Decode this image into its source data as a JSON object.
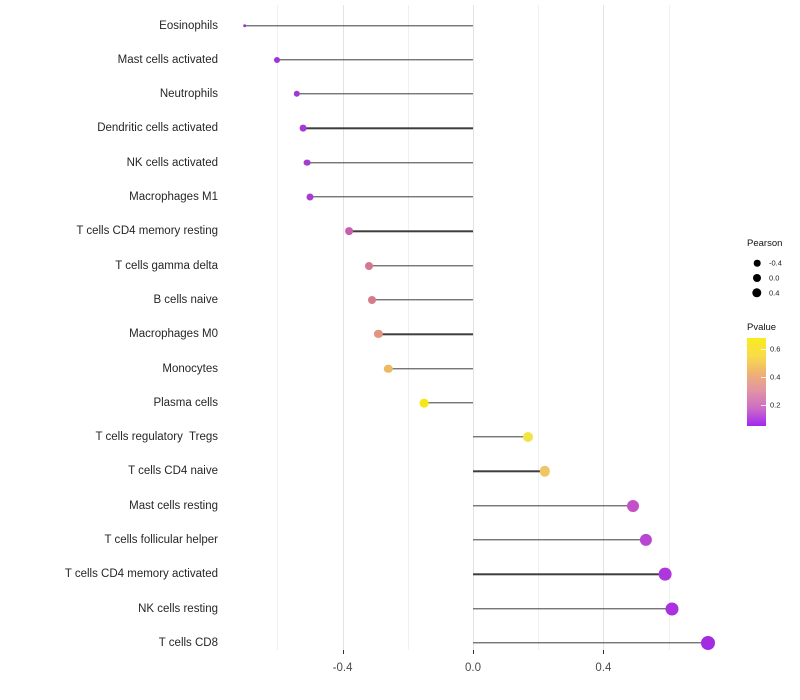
{
  "chart_data": {
    "type": "lollipop",
    "orientation": "horizontal",
    "title": "",
    "xlabel": "",
    "ylabel": "",
    "baseline": 0.0,
    "xlim": [
      -0.77,
      0.8
    ],
    "grid": true,
    "x_axis": {
      "major_ticks": [
        -0.4,
        0.0,
        0.4
      ],
      "major_tick_labels": [
        "-0.4",
        "0.0",
        "0.4"
      ],
      "minor_ticks": [
        -0.6,
        -0.2,
        0.2,
        0.6
      ]
    },
    "categories": [
      "Eosinophils",
      "Mast cells activated",
      "Neutrophils",
      "Dendritic cells activated",
      "NK cells activated",
      "Macrophages M1",
      "T cells CD4 memory resting",
      "T cells gamma delta",
      "B cells naive",
      "Macrophages M0",
      "Monocytes",
      "Plasma cells",
      "T cells regulatory  Tregs",
      "T cells CD4 naive",
      "Mast cells resting",
      "T cells follicular helper",
      "T cells CD4 memory activated",
      "NK cells resting",
      "T cells CD8"
    ],
    "series": [
      {
        "name": "Pearson",
        "values": [
          -0.7,
          -0.6,
          -0.54,
          -0.52,
          -0.51,
          -0.5,
          -0.38,
          -0.32,
          -0.31,
          -0.29,
          -0.26,
          -0.15,
          0.17,
          0.22,
          0.49,
          0.53,
          0.59,
          0.61,
          0.72
        ]
      }
    ],
    "point_colors": [
      "#9a3ad4",
      "#9d36d3",
      "#a138d2",
      "#a43ad1",
      "#a63bd0",
      "#a83cd0",
      "#c65fb2",
      "#d5778f",
      "#d77b8b",
      "#e29480",
      "#ecba62",
      "#f6e718",
      "#f3e344",
      "#eec764",
      "#c251c7",
      "#b946d3",
      "#ae36dc",
      "#ab31df",
      "#a32ce3"
    ],
    "point_radii": [
      1.8,
      3.0,
      3.2,
      3.4,
      3.4,
      3.5,
      3.9,
      4.0,
      4.0,
      4.1,
      4.2,
      4.4,
      5.0,
      5.2,
      6.0,
      6.1,
      6.4,
      6.5,
      7.0
    ],
    "stem_color": "#3d3d3d",
    "legend_position": "right",
    "legends": {
      "size": {
        "title": "Pearson",
        "dot_color": "#000000",
        "entries": [
          {
            "label": "-0.4",
            "radius": 3.3
          },
          {
            "label": "0.0",
            "radius": 4.0
          },
          {
            "label": "0.4",
            "radius": 4.7
          }
        ]
      },
      "color": {
        "title": "Pvalue",
        "tick_labels": [
          "0.6",
          "0.4",
          "0.2"
        ],
        "gradient_top_to_bottom": [
          "#fbea1f",
          "#f8dd48",
          "#efb273",
          "#e293a5",
          "#cc6cc6",
          "#a326f2"
        ],
        "value_range_top_to_bottom": [
          0.65,
          0.0
        ]
      }
    }
  }
}
